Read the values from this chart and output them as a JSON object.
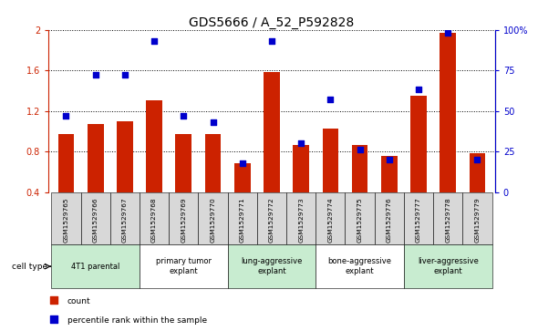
{
  "title": "GDS5666 / A_52_P592828",
  "samples": [
    "GSM1529765",
    "GSM1529766",
    "GSM1529767",
    "GSM1529768",
    "GSM1529769",
    "GSM1529770",
    "GSM1529771",
    "GSM1529772",
    "GSM1529773",
    "GSM1529774",
    "GSM1529775",
    "GSM1529776",
    "GSM1529777",
    "GSM1529778",
    "GSM1529779"
  ],
  "counts": [
    0.97,
    1.07,
    1.1,
    1.3,
    0.97,
    0.97,
    0.68,
    1.58,
    0.86,
    1.03,
    0.86,
    0.76,
    1.35,
    1.97,
    0.78
  ],
  "percentiles": [
    47,
    72,
    72,
    93,
    47,
    43,
    18,
    93,
    30,
    57,
    26,
    20,
    63,
    98,
    20
  ],
  "ylim_left": [
    0.4,
    2.0
  ],
  "ylim_right": [
    0,
    100
  ],
  "bar_color": "#cc2200",
  "dot_color": "#0000cc",
  "background_color": "#ffffff",
  "cell_types": [
    {
      "label": "4T1 parental",
      "start": 0,
      "end": 3,
      "color": "#c8ecd0"
    },
    {
      "label": "primary tumor\nexplant",
      "start": 3,
      "end": 6,
      "color": "#ffffff"
    },
    {
      "label": "lung-aggressive\nexplant",
      "start": 6,
      "end": 9,
      "color": "#c8ecd0"
    },
    {
      "label": "bone-aggressive\nexplant",
      "start": 9,
      "end": 12,
      "color": "#ffffff"
    },
    {
      "label": "liver-aggressive\nexplant",
      "start": 12,
      "end": 15,
      "color": "#c8ecd0"
    }
  ],
  "legend_count_label": "count",
  "legend_percentile_label": "percentile rank within the sample",
  "cell_type_label": "cell type",
  "title_fontsize": 10,
  "tick_fontsize": 7,
  "label_fontsize": 7
}
